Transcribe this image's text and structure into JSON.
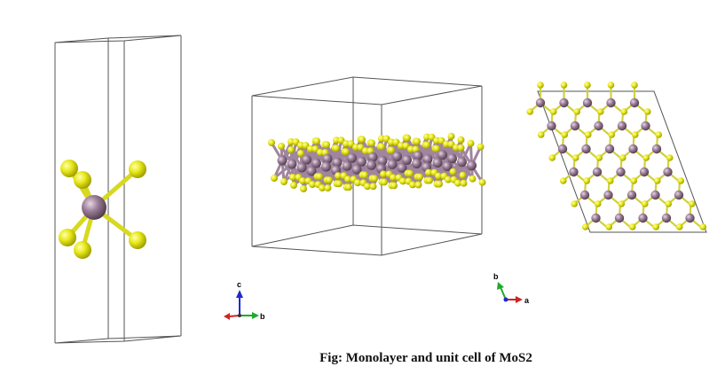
{
  "caption": "Fig: Monolayer and unit cell of MoS2",
  "axes_triads": [
    {
      "labels": {
        "up": "c",
        "right": "b"
      }
    },
    {
      "labels": {
        "up": "b",
        "right": "a"
      }
    }
  ],
  "colors": {
    "mo_atom": "#9a7d97",
    "s_atom": "#e8e81a",
    "bond_s": "#d8d820",
    "bond_mo": "#a0859e",
    "cell_line": "#555555",
    "axis_a": "#d0241e",
    "axis_b": "#1faa2a",
    "axis_c": "#1f2ad0"
  }
}
